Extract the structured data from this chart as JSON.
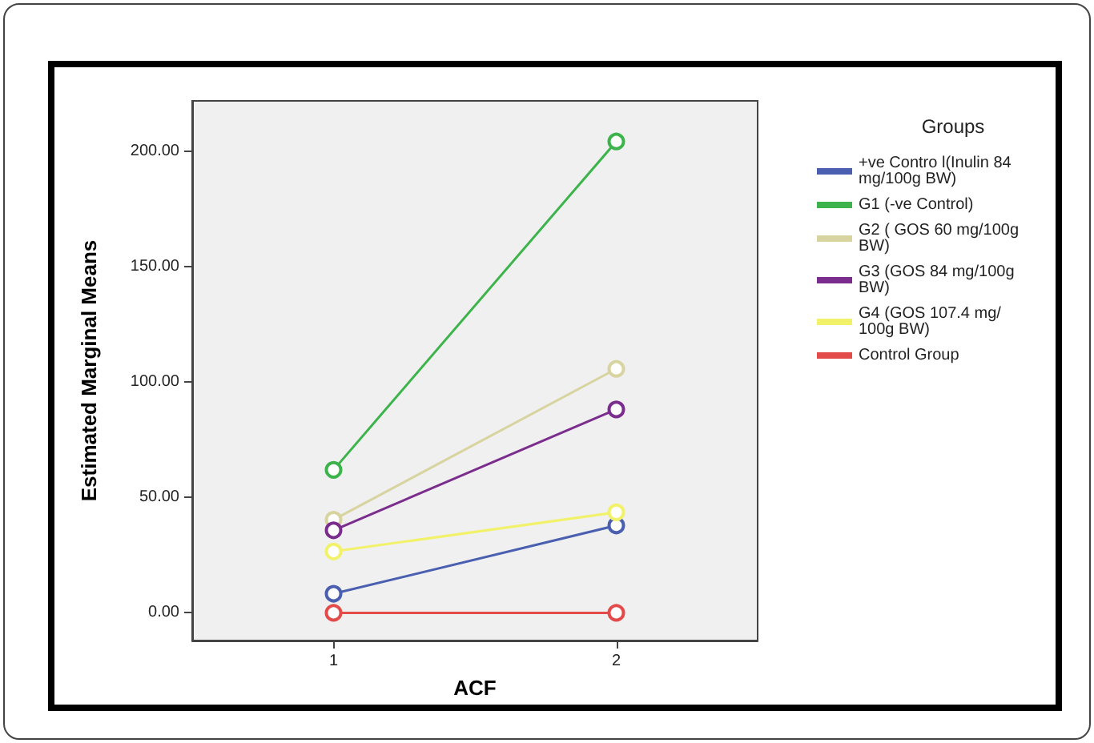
{
  "chart_data": {
    "type": "line",
    "xlabel": "ACF",
    "ylabel": "Estimated Marginal Means",
    "legend_title": "Groups",
    "categories": [
      "1",
      "2"
    ],
    "series": [
      {
        "name": "+ve Contro l(Inulin 84 mg/100g BW)",
        "color": "#4a5fb0",
        "values": [
          8.3,
          37.9
        ]
      },
      {
        "name": "G1 (-ve Control)",
        "color": "#3cb44b",
        "values": [
          62,
          204.4
        ]
      },
      {
        "name": "G2 ( GOS 60 mg/100g BW)",
        "color": "#d8d4a0",
        "values": [
          40.4,
          105.8
        ]
      },
      {
        "name": "G3 (GOS 84 mg/100g BW)",
        "color": "#7b2d8e",
        "values": [
          35.8,
          88.2
        ]
      },
      {
        "name": "G4 (GOS 107.4 mg/100g BW)",
        "color": "#f2f26a",
        "values": [
          26.6,
          43.6
        ]
      },
      {
        "name": "Control Group",
        "color": "#e34a4a",
        "values": [
          0,
          0
        ]
      }
    ],
    "ylim": [
      -12,
      222
    ],
    "yticks": [
      {
        "value": 0,
        "label": "0.00"
      },
      {
        "value": 50,
        "label": "50.00"
      },
      {
        "value": 100,
        "label": "100.00"
      },
      {
        "value": 150,
        "label": "150.00"
      },
      {
        "value": 200,
        "label": "200.00"
      }
    ],
    "grid": false,
    "legend": "right",
    "marker": "circle",
    "line_style": "solid"
  }
}
